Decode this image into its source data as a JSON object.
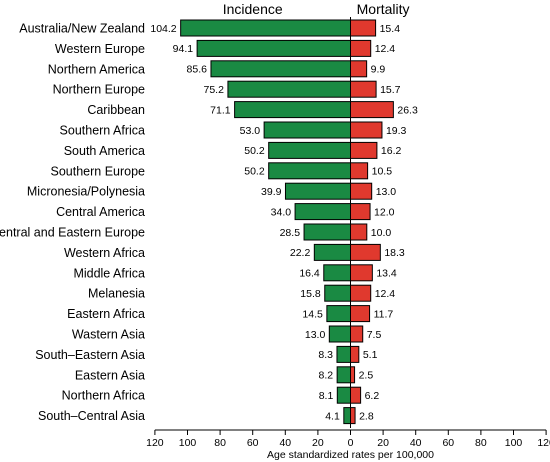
{
  "chart_data": {
    "type": "bar",
    "orientation": "horizontal-diverging",
    "categories": [
      "Australia/New Zealand",
      "Western Europe",
      "Northern America",
      "Northern Europe",
      "Caribbean",
      "Southern Africa",
      "South America",
      "Southern Europe",
      "Micronesia/Polynesia",
      "Central America",
      "Central and Eastern Europe",
      "Western Africa",
      "Middle Africa",
      "Melanesia",
      "Eastern Africa",
      "Wastern Asia",
      "South–Eastern Asia",
      "Eastern Asia",
      "Northern Africa",
      "South–Central Asia"
    ],
    "series": [
      {
        "name": "Incidence",
        "color": "#1a8a43",
        "side": "left",
        "values": [
          104.2,
          94.1,
          85.6,
          75.2,
          71.1,
          53.0,
          50.2,
          50.2,
          39.9,
          34.0,
          28.5,
          22.2,
          16.4,
          15.8,
          14.5,
          13.0,
          8.3,
          8.2,
          8.1,
          4.1
        ],
        "labels": [
          "104.2",
          "94.1",
          "85.6",
          "75.2",
          "71.1",
          "53.0",
          "50.2",
          "50.2",
          "39.9",
          "34.0",
          "28.5",
          "22.2",
          "16.4",
          "15.8",
          "14.5",
          "13.0",
          "8.3",
          "8.2",
          "8.1",
          "4.1"
        ]
      },
      {
        "name": "Mortality",
        "color": "#e0392e",
        "side": "right",
        "values": [
          15.4,
          12.4,
          9.9,
          15.7,
          26.3,
          19.3,
          16.2,
          10.5,
          13.0,
          12.0,
          10.0,
          18.3,
          13.4,
          12.4,
          11.7,
          7.5,
          5.1,
          2.5,
          6.2,
          2.8
        ],
        "labels": [
          "15.4",
          "12.4",
          "9.9",
          "15.7",
          "26.3",
          "19.3",
          "16.2",
          "10.5",
          "13.0",
          "12.0",
          "10.0",
          "18.3",
          "13.4",
          "12.4",
          "11.7",
          "7.5",
          "5.1",
          "2.5",
          "6.2",
          "2.8"
        ]
      }
    ],
    "xlabel": "Age standardized rates per 100,000",
    "xlim": [
      0,
      120
    ],
    "ticks": [
      120,
      100,
      80,
      60,
      40,
      20,
      0,
      20,
      40,
      60,
      80,
      100,
      120
    ],
    "grid": false,
    "legend": "none"
  }
}
